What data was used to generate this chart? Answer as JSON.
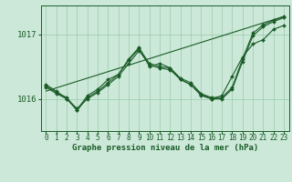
{
  "bg_color": "#cce8d8",
  "grid_color": "#99ccaa",
  "line_color": "#1a5c28",
  "xlabel": "Graphe pression niveau de la mer (hPa)",
  "xlabel_fontsize": 6.5,
  "tick_fontsize": 5.5,
  "ytick_fontsize": 6.5,
  "xlim": [
    -0.5,
    23.5
  ],
  "ylim": [
    1015.5,
    1017.45
  ],
  "yticks": [
    1016,
    1017
  ],
  "xticks": [
    0,
    1,
    2,
    3,
    4,
    5,
    6,
    7,
    8,
    9,
    10,
    11,
    12,
    13,
    14,
    15,
    16,
    17,
    18,
    19,
    20,
    21,
    22,
    23
  ],
  "series1_x": [
    0,
    1,
    2,
    3,
    4,
    5,
    6,
    7,
    8,
    9,
    10,
    11,
    12,
    13,
    14,
    15,
    16,
    17,
    18,
    19,
    20,
    21,
    22,
    23
  ],
  "series1_y": [
    1016.22,
    1016.12,
    1016.0,
    1015.82,
    1016.02,
    1016.12,
    1016.25,
    1016.38,
    1016.6,
    1016.78,
    1016.55,
    1016.5,
    1016.48,
    1016.32,
    1016.25,
    1016.08,
    1016.02,
    1016.02,
    1016.18,
    1016.62,
    1017.02,
    1017.15,
    1017.22,
    1017.28
  ],
  "series2_x": [
    0,
    1,
    2,
    3,
    4,
    5,
    6,
    7,
    8,
    9,
    10,
    11,
    12,
    13,
    14,
    15,
    16,
    17,
    18,
    19,
    20,
    21,
    22,
    23
  ],
  "series2_y": [
    1016.18,
    1016.08,
    1016.0,
    1015.85,
    1016.0,
    1016.1,
    1016.22,
    1016.35,
    1016.55,
    1016.75,
    1016.52,
    1016.48,
    1016.45,
    1016.3,
    1016.22,
    1016.05,
    1016.0,
    1016.0,
    1016.15,
    1016.58,
    1016.98,
    1017.12,
    1017.2,
    1017.26
  ],
  "series3_x": [
    0,
    1,
    2,
    3,
    4,
    5,
    6,
    7,
    8,
    9,
    10,
    11,
    12,
    13,
    14,
    15,
    16,
    17,
    18,
    19,
    20,
    21,
    22,
    23
  ],
  "series3_y": [
    1016.2,
    1016.1,
    1016.02,
    1015.83,
    1016.05,
    1016.15,
    1016.3,
    1016.38,
    1016.62,
    1016.8,
    1016.5,
    1016.55,
    1016.48,
    1016.3,
    1016.22,
    1016.07,
    1016.0,
    1016.05,
    1016.35,
    1016.65,
    1016.85,
    1016.92,
    1017.08,
    1017.14
  ],
  "trend_x": [
    0,
    23
  ],
  "trend_y": [
    1016.12,
    1017.28
  ]
}
